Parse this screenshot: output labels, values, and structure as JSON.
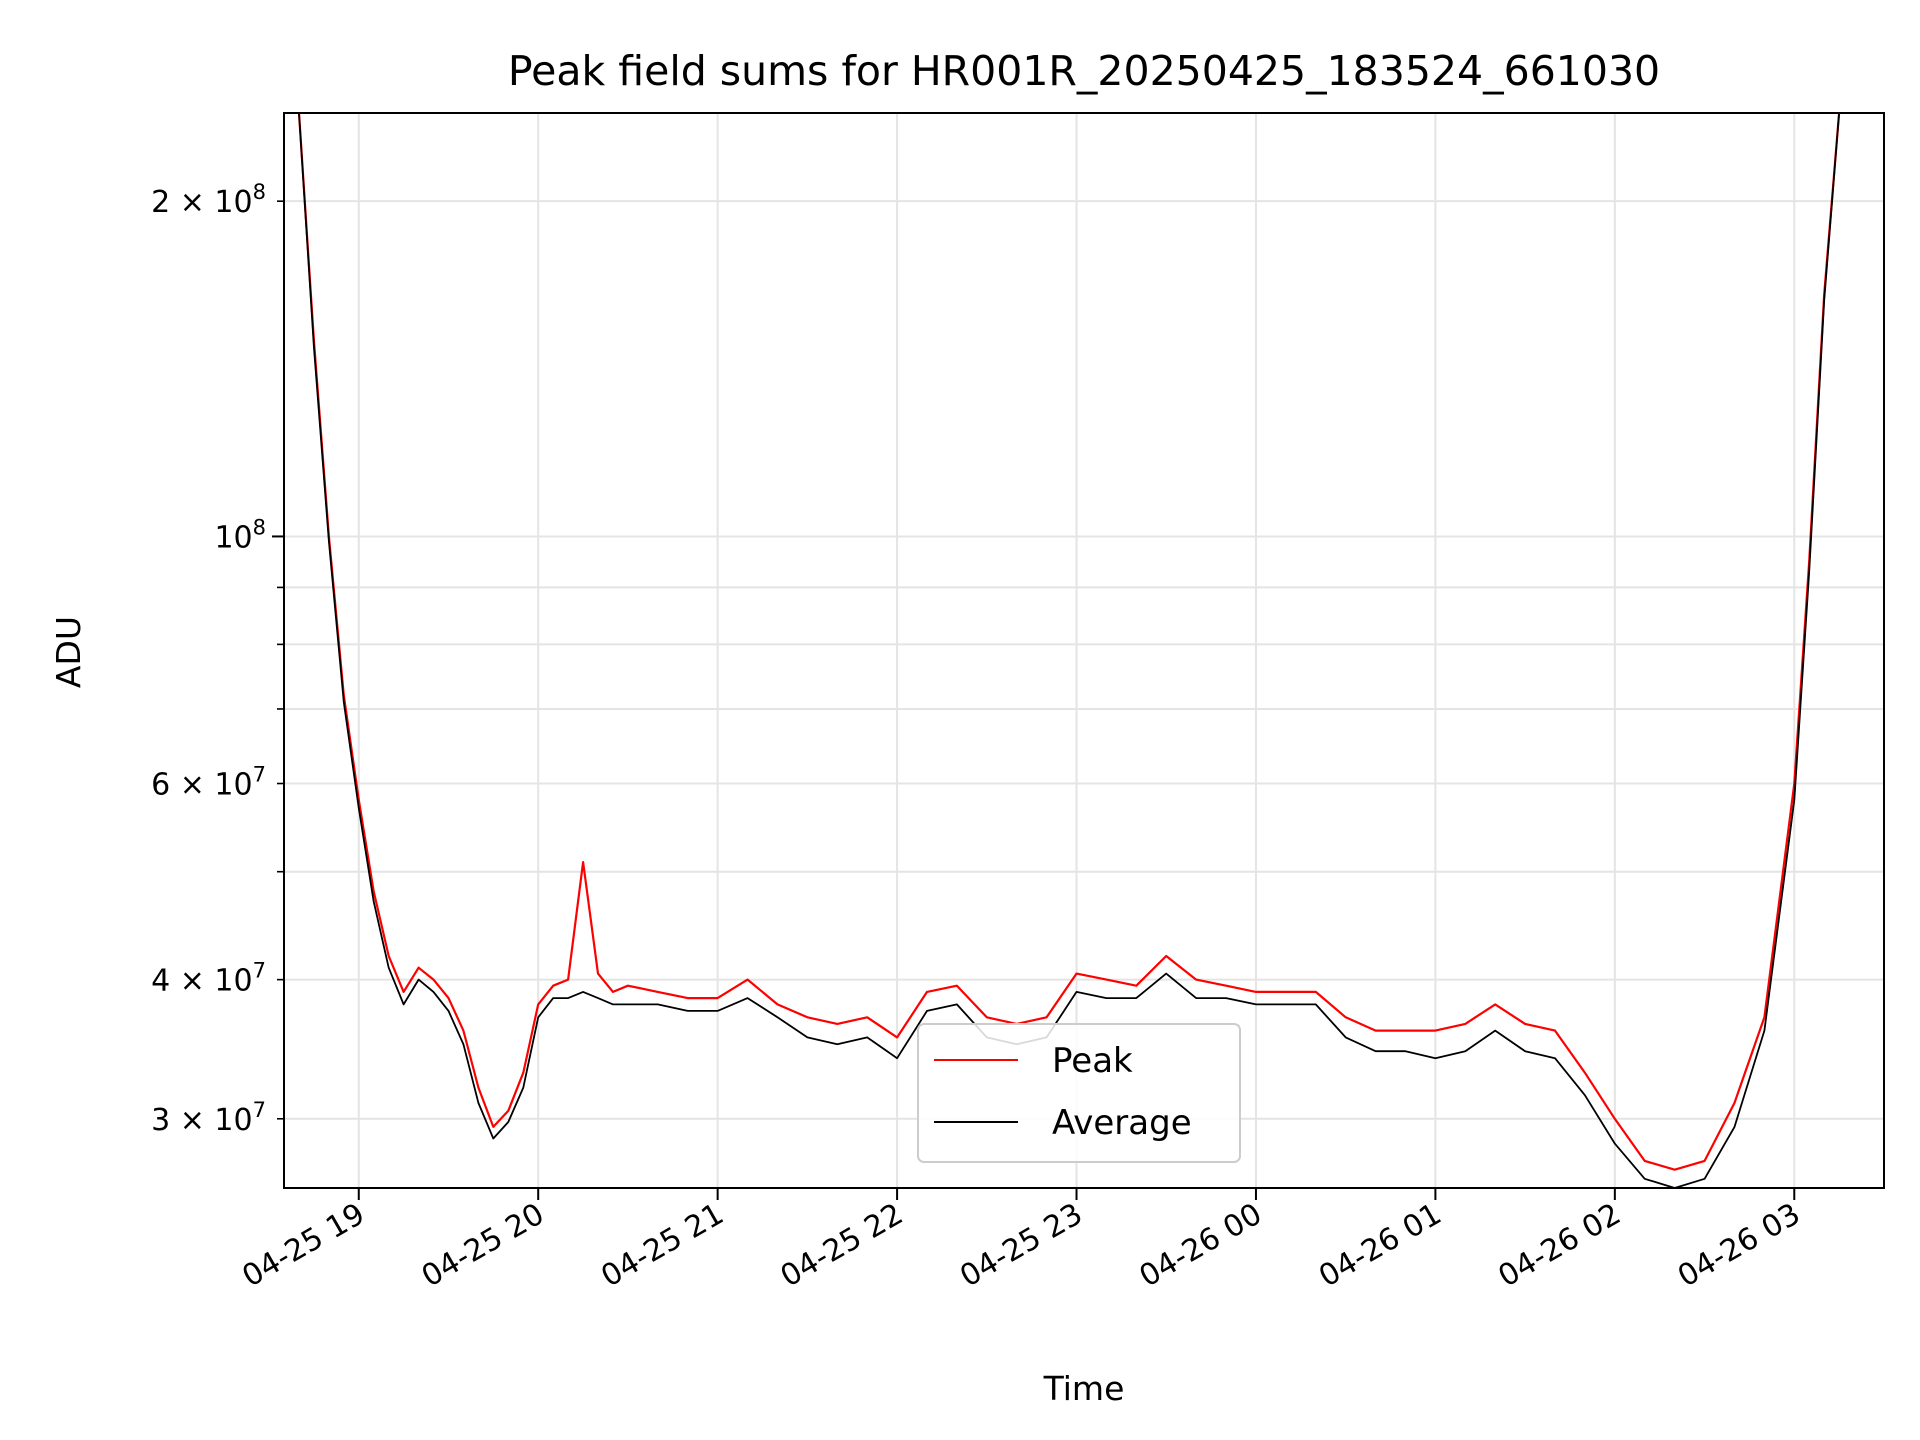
{
  "chart_data": {
    "type": "line",
    "title": "Peak field sums for HR001R_20250425_183524_661030",
    "xlabel": "Time",
    "ylabel": "ADU",
    "yscale": "log",
    "grid": true,
    "legend_placement": "bottom-center",
    "xlim": [
      "2025-04-25 18:35",
      "2025-04-26 03:30"
    ],
    "ylim": [
      26000000,
      240000000
    ],
    "x_ticks": [
      "04-25 19",
      "04-25 20",
      "04-25 21",
      "04-25 22",
      "04-25 23",
      "04-26 00",
      "04-26 01",
      "04-26 02",
      "04-26 03"
    ],
    "y_ticks": [
      {
        "value": 30000000,
        "mantissa": "3",
        "exponent": "7"
      },
      {
        "value": 40000000,
        "mantissa": "4",
        "exponent": "7"
      },
      {
        "value": 60000000,
        "mantissa": "6",
        "exponent": "7"
      },
      {
        "value": 100000000,
        "mantissa": "",
        "exponent": "8"
      },
      {
        "value": 200000000,
        "mantissa": "2",
        "exponent": "8"
      }
    ],
    "series": [
      {
        "name": "Peak",
        "color": "#ff0000",
        "x": [
          "2025-04-25 18:40",
          "2025-04-25 18:45",
          "2025-04-25 18:50",
          "2025-04-25 18:55",
          "2025-04-25 19:00",
          "2025-04-25 19:05",
          "2025-04-25 19:10",
          "2025-04-25 19:15",
          "2025-04-25 19:20",
          "2025-04-25 19:25",
          "2025-04-25 19:30",
          "2025-04-25 19:35",
          "2025-04-25 19:40",
          "2025-04-25 19:45",
          "2025-04-25 19:50",
          "2025-04-25 19:55",
          "2025-04-25 20:00",
          "2025-04-25 20:05",
          "2025-04-25 20:10",
          "2025-04-25 20:15",
          "2025-04-25 20:20",
          "2025-04-25 20:25",
          "2025-04-25 20:30",
          "2025-04-25 20:40",
          "2025-04-25 20:50",
          "2025-04-25 21:00",
          "2025-04-25 21:10",
          "2025-04-25 21:20",
          "2025-04-25 21:30",
          "2025-04-25 21:40",
          "2025-04-25 21:50",
          "2025-04-25 22:00",
          "2025-04-25 22:10",
          "2025-04-25 22:20",
          "2025-04-25 22:30",
          "2025-04-25 22:40",
          "2025-04-25 22:50",
          "2025-04-25 23:00",
          "2025-04-25 23:10",
          "2025-04-25 23:20",
          "2025-04-25 23:30",
          "2025-04-25 23:40",
          "2025-04-25 23:50",
          "2025-04-26 00:00",
          "2025-04-26 00:10",
          "2025-04-26 00:20",
          "2025-04-26 00:30",
          "2025-04-26 00:40",
          "2025-04-26 00:50",
          "2025-04-26 01:00",
          "2025-04-26 01:10",
          "2025-04-26 01:20",
          "2025-04-26 01:30",
          "2025-04-26 01:40",
          "2025-04-26 01:50",
          "2025-04-26 02:00",
          "2025-04-26 02:10",
          "2025-04-26 02:20",
          "2025-04-26 02:30",
          "2025-04-26 02:40",
          "2025-04-26 02:50",
          "2025-04-26 03:00",
          "2025-04-26 03:05",
          "2025-04-26 03:10",
          "2025-04-26 03:15"
        ],
        "values": [
          240000000,
          150000000,
          100000000,
          72000000,
          58000000,
          48000000,
          42000000,
          39000000,
          41000000,
          40000000,
          38500000,
          36000000,
          32000000,
          29500000,
          30500000,
          33000000,
          38000000,
          39500000,
          40000000,
          51000000,
          40500000,
          39000000,
          39500000,
          39000000,
          38500000,
          38500000,
          40000000,
          38000000,
          37000000,
          36500000,
          37000000,
          35500000,
          39000000,
          39500000,
          37000000,
          36500000,
          37000000,
          40500000,
          40000000,
          39500000,
          42000000,
          40000000,
          39500000,
          39000000,
          39000000,
          39000000,
          37000000,
          36000000,
          36000000,
          36000000,
          36500000,
          38000000,
          36500000,
          36000000,
          33000000,
          30000000,
          27500000,
          27000000,
          27500000,
          31000000,
          37000000,
          60000000,
          95000000,
          165000000,
          240000000
        ]
      },
      {
        "name": "Average",
        "color": "#000000",
        "x": [
          "2025-04-25 18:40",
          "2025-04-25 18:45",
          "2025-04-25 18:50",
          "2025-04-25 18:55",
          "2025-04-25 19:00",
          "2025-04-25 19:05",
          "2025-04-25 19:10",
          "2025-04-25 19:15",
          "2025-04-25 19:20",
          "2025-04-25 19:25",
          "2025-04-25 19:30",
          "2025-04-25 19:35",
          "2025-04-25 19:40",
          "2025-04-25 19:45",
          "2025-04-25 19:50",
          "2025-04-25 19:55",
          "2025-04-25 20:00",
          "2025-04-25 20:05",
          "2025-04-25 20:10",
          "2025-04-25 20:15",
          "2025-04-25 20:20",
          "2025-04-25 20:25",
          "2025-04-25 20:30",
          "2025-04-25 20:40",
          "2025-04-25 20:50",
          "2025-04-25 21:00",
          "2025-04-25 21:10",
          "2025-04-25 21:20",
          "2025-04-25 21:30",
          "2025-04-25 21:40",
          "2025-04-25 21:50",
          "2025-04-25 22:00",
          "2025-04-25 22:10",
          "2025-04-25 22:20",
          "2025-04-25 22:30",
          "2025-04-25 22:40",
          "2025-04-25 22:50",
          "2025-04-25 23:00",
          "2025-04-25 23:10",
          "2025-04-25 23:20",
          "2025-04-25 23:30",
          "2025-04-25 23:40",
          "2025-04-25 23:50",
          "2025-04-26 00:00",
          "2025-04-26 00:10",
          "2025-04-26 00:20",
          "2025-04-26 00:30",
          "2025-04-26 00:40",
          "2025-04-26 00:50",
          "2025-04-26 01:00",
          "2025-04-26 01:10",
          "2025-04-26 01:20",
          "2025-04-26 01:30",
          "2025-04-26 01:40",
          "2025-04-26 01:50",
          "2025-04-26 02:00",
          "2025-04-26 02:10",
          "2025-04-26 02:20",
          "2025-04-26 02:30",
          "2025-04-26 02:40",
          "2025-04-26 02:50",
          "2025-04-26 03:00",
          "2025-04-26 03:05",
          "2025-04-26 03:10",
          "2025-04-26 03:15"
        ],
        "values": [
          240000000,
          148000000,
          99000000,
          71000000,
          57000000,
          47000000,
          41000000,
          38000000,
          40000000,
          39000000,
          37500000,
          35000000,
          31000000,
          28800000,
          29800000,
          32000000,
          37000000,
          38500000,
          38500000,
          39000000,
          38500000,
          38000000,
          38000000,
          38000000,
          37500000,
          37500000,
          38500000,
          37000000,
          35500000,
          35000000,
          35500000,
          34000000,
          37500000,
          38000000,
          35500000,
          35000000,
          35500000,
          39000000,
          38500000,
          38500000,
          40500000,
          38500000,
          38500000,
          38000000,
          38000000,
          38000000,
          35500000,
          34500000,
          34500000,
          34000000,
          34500000,
          36000000,
          34500000,
          34000000,
          31500000,
          28500000,
          26500000,
          26000000,
          26500000,
          29500000,
          36000000,
          58000000,
          93000000,
          163000000,
          240000000
        ]
      }
    ]
  }
}
